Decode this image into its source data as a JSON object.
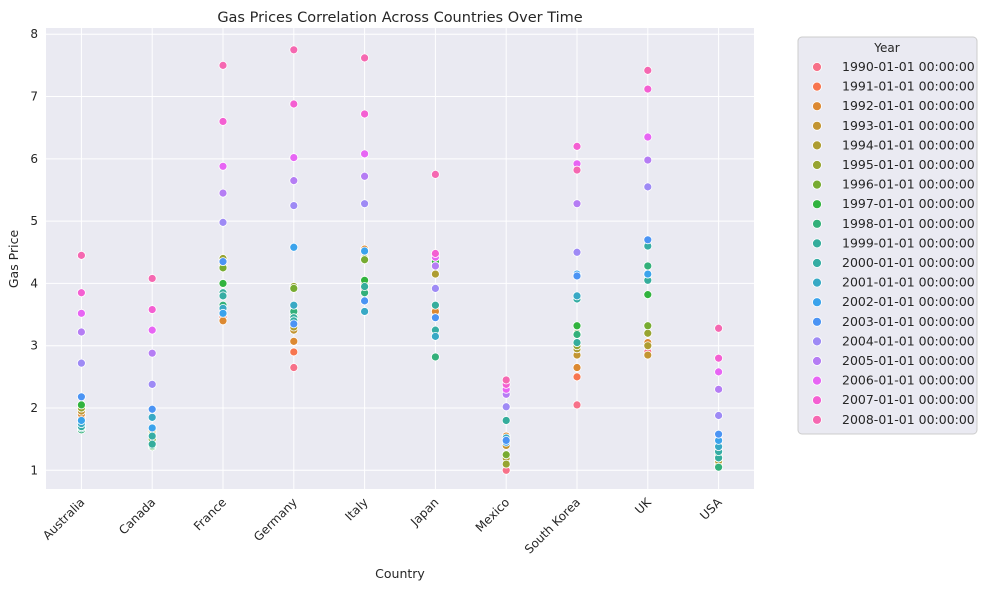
{
  "chart_data": {
    "type": "scatter",
    "title": "Gas Prices Correlation Across Countries Over Time",
    "xlabel": "Country",
    "ylabel": "Gas Price",
    "categories": [
      "Australia",
      "Canada",
      "France",
      "Germany",
      "Italy",
      "Japan",
      "Mexico",
      "South Korea",
      "UK",
      "USA"
    ],
    "ylim": [
      0.7,
      8.1
    ],
    "yticks": [
      "1",
      "2",
      "3",
      "4",
      "5",
      "6",
      "7",
      "8"
    ],
    "grid": true,
    "legend": {
      "title": "Year",
      "placement": "outside-right"
    },
    "series": [
      {
        "name": "1990-01-01 00:00:00",
        "color": "#f77189",
        "values": [
          1.8,
          1.55,
          3.5,
          2.65,
          3.9,
          3.55,
          1.0,
          2.05,
          2.9,
          1.2
        ]
      },
      {
        "name": "1991-01-01 00:00:00",
        "color": "#f7754f",
        "values": [
          1.85,
          1.6,
          3.45,
          2.9,
          4.0,
          3.6,
          1.25,
          2.5,
          3.0,
          1.15
        ]
      },
      {
        "name": "1992-01-01 00:00:00",
        "color": "#dc8932",
        "values": [
          1.9,
          1.65,
          3.4,
          3.07,
          4.55,
          3.55,
          1.55,
          2.65,
          3.05,
          1.1
        ]
      },
      {
        "name": "1993-01-01 00:00:00",
        "color": "#c39532",
        "values": [
          1.95,
          1.62,
          4.3,
          3.25,
          4.0,
          4.35,
          1.4,
          2.85,
          2.85,
          1.1
        ]
      },
      {
        "name": "1994-01-01 00:00:00",
        "color": "#ae9d31",
        "values": [
          2.0,
          1.58,
          4.35,
          3.3,
          4.4,
          4.15,
          1.2,
          2.95,
          3.0,
          1.15
        ]
      },
      {
        "name": "1995-01-01 00:00:00",
        "color": "#97a431",
        "values": [
          2.0,
          1.55,
          4.4,
          3.95,
          4.4,
          4.3,
          1.1,
          3.0,
          3.2,
          1.2
        ]
      },
      {
        "name": "1996-01-01 00:00:00",
        "color": "#77ab31",
        "values": [
          2.05,
          1.5,
          4.25,
          3.92,
          4.38,
          4.32,
          1.25,
          3.2,
          3.32,
          1.25
        ]
      },
      {
        "name": "1997-01-01 00:00:00",
        "color": "#31b33e",
        "values": [
          2.05,
          1.38,
          4.0,
          3.5,
          4.05,
          4.35,
          1.5,
          3.32,
          3.82,
          1.2
        ]
      },
      {
        "name": "1998-01-01 00:00:00",
        "color": "#33b07a",
        "values": [
          1.65,
          1.4,
          3.65,
          3.55,
          3.85,
          2.82,
          1.48,
          3.18,
          4.28,
          1.05
        ]
      },
      {
        "name": "1999-01-01 00:00:00",
        "color": "#35ad9c",
        "values": [
          1.68,
          1.42,
          3.85,
          3.45,
          3.95,
          3.65,
          1.8,
          3.05,
          4.05,
          1.2
        ]
      },
      {
        "name": "2000-01-01 00:00:00",
        "color": "#36ada4",
        "values": [
          1.7,
          1.55,
          3.8,
          3.4,
          3.72,
          3.25,
          1.48,
          3.75,
          4.6,
          1.3
        ]
      },
      {
        "name": "2001-01-01 00:00:00",
        "color": "#38a9c5",
        "values": [
          1.75,
          1.85,
          3.6,
          3.65,
          3.55,
          3.15,
          1.52,
          3.8,
          4.15,
          1.38
        ]
      },
      {
        "name": "2002-01-01 00:00:00",
        "color": "#3ba3ec",
        "values": [
          1.8,
          1.68,
          3.52,
          4.58,
          4.52,
          3.45,
          1.45,
          4.15,
          4.15,
          1.48
        ]
      },
      {
        "name": "2003-01-01 00:00:00",
        "color": "#4b94f4",
        "values": [
          2.18,
          1.98,
          4.35,
          3.35,
          3.72,
          3.45,
          1.48,
          4.12,
          4.7,
          1.58
        ]
      },
      {
        "name": "2004-01-01 00:00:00",
        "color": "#9e8af5",
        "values": [
          2.72,
          2.38,
          4.98,
          5.25,
          5.28,
          3.92,
          2.02,
          4.5,
          5.55,
          1.88
        ]
      },
      {
        "name": "2005-01-01 00:00:00",
        "color": "#b57df4",
        "values": [
          3.22,
          2.88,
          5.45,
          5.65,
          5.72,
          4.28,
          2.22,
          5.28,
          5.98,
          2.3
        ]
      },
      {
        "name": "2006-01-01 00:00:00",
        "color": "#e765f4",
        "values": [
          3.52,
          3.25,
          5.88,
          6.02,
          6.08,
          4.42,
          2.3,
          5.92,
          6.35,
          2.58
        ]
      },
      {
        "name": "2007-01-01 00:00:00",
        "color": "#f45fd2",
        "values": [
          3.85,
          3.58,
          6.6,
          6.88,
          6.72,
          4.48,
          2.38,
          6.2,
          7.12,
          2.8
        ]
      },
      {
        "name": "2008-01-01 00:00:00",
        "color": "#f568b1",
        "values": [
          4.45,
          4.08,
          7.5,
          7.75,
          7.62,
          5.75,
          2.45,
          5.82,
          7.42,
          3.28
        ]
      }
    ]
  }
}
